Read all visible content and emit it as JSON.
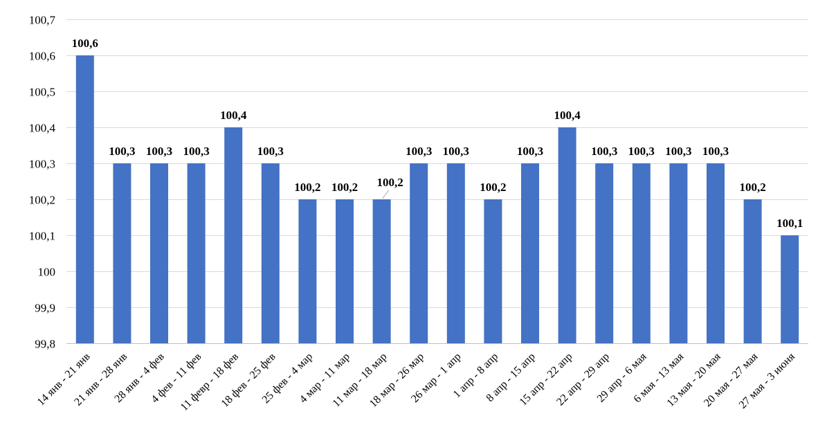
{
  "chart_data": {
    "type": "bar",
    "categories": [
      "14 янв - 21 янв",
      "21 янв - 28 янв",
      "28 янв - 4 фев",
      "4 фев - 11 фев",
      "11 февр - 18 фев",
      "18 фев - 25 фев",
      "25 фев - 4 мар",
      "4 мар - 11 мар",
      "11 мар - 18 мар",
      "18 мар - 26 мар",
      "26 мар - 1 апр",
      "1 апр - 8 апр",
      "8 апр - 15 апр",
      "15 апр - 22 апр",
      "22 апр - 29 апр",
      "29 апр - 6 мая",
      "6 мая - 13 мая",
      "13 мая - 20 мая",
      "20 мая - 27 мая",
      "27 мая - 3 июня"
    ],
    "values": [
      100.6,
      100.3,
      100.3,
      100.3,
      100.4,
      100.3,
      100.2,
      100.2,
      100.2,
      100.3,
      100.3,
      100.2,
      100.3,
      100.4,
      100.3,
      100.3,
      100.3,
      100.3,
      100.2,
      100.1
    ],
    "data_labels": [
      "100,6",
      "100,3",
      "100,3",
      "100,3",
      "100,4",
      "100,3",
      "100,2",
      "100,2",
      "100,2",
      "100,3",
      "100,3",
      "100,2",
      "100,3",
      "100,4",
      "100,3",
      "100,3",
      "100,3",
      "100,3",
      "100,2",
      "100,1"
    ],
    "yticks": [
      99.8,
      99.9,
      100,
      100.1,
      100.2,
      100.3,
      100.4,
      100.5,
      100.6,
      100.7
    ],
    "ytick_labels": [
      "99,8",
      "99,9",
      "100",
      "100,1",
      "100,2",
      "100,3",
      "100,4",
      "100,5",
      "100,6",
      "100,7"
    ],
    "ylim": [
      99.8,
      100.7
    ],
    "title": "",
    "xlabel": "",
    "ylabel": "",
    "grid": true,
    "legend": "none",
    "bar_color": "#4472C4"
  }
}
